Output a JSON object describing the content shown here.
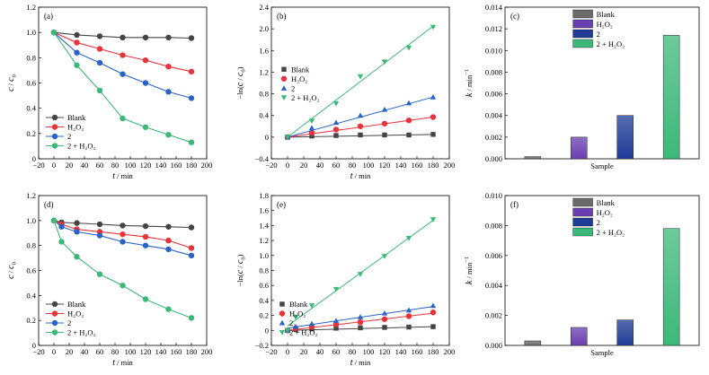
{
  "colors": {
    "Blank": "#444444",
    "H2O2": "#e8323c",
    "2": "#2a62c8",
    "2+H2O2": "#3cb878",
    "bar_Blank": "#6b6b6b",
    "bar_H2O2": "#6a3fb0",
    "bar_2": "#1f3c96",
    "bar_2+H2O2": "#3cb87a"
  },
  "chart_data": [
    {
      "id": "a",
      "type": "line",
      "label": "(a)",
      "xlabel_var": "t",
      "xlabel_unit": " / min",
      "ylabel_var": "c",
      "ylabel_sep": " / ",
      "ylabel_sub": "c",
      "xlim": [
        -20,
        200
      ],
      "ylim": [
        0,
        1.2
      ],
      "xticks": [
        "−20",
        "0",
        "20",
        "40",
        "60",
        "80",
        "100",
        "120",
        "140",
        "160",
        "180",
        "200"
      ],
      "yticks": [
        "0",
        "0.2",
        "0.4",
        "0.6",
        "0.8",
        "1.0",
        "1.2"
      ],
      "legend": "bottom-left",
      "x": [
        0,
        30,
        60,
        90,
        120,
        150,
        180
      ],
      "series": [
        {
          "name": "Blank",
          "key": "Blank",
          "marker": "circle",
          "values": [
            1.0,
            0.98,
            0.97,
            0.96,
            0.96,
            0.96,
            0.955
          ]
        },
        {
          "name": "H₂O₂",
          "key": "H2O2",
          "marker": "circle",
          "values": [
            1.0,
            0.92,
            0.87,
            0.82,
            0.78,
            0.73,
            0.69
          ]
        },
        {
          "name": "2",
          "key": "2",
          "marker": "circle",
          "values": [
            1.0,
            0.84,
            0.76,
            0.67,
            0.6,
            0.53,
            0.48
          ]
        },
        {
          "name": "2 + H₂O₂",
          "key": "2+H2O2",
          "marker": "circle",
          "values": [
            1.0,
            0.74,
            0.54,
            0.32,
            0.25,
            0.19,
            0.13
          ]
        }
      ]
    },
    {
      "id": "b",
      "type": "scatter",
      "label": "(b)",
      "xlabel_var": "t",
      "xlabel_unit": " / min",
      "ylabel_var": "c",
      "ylabel_sub": "c",
      "xlim": [
        -20,
        200
      ],
      "ylim": [
        -0.4,
        2.4
      ],
      "xticks": [
        "−20",
        "0",
        "20",
        "40",
        "60",
        "80",
        "100",
        "120",
        "140",
        "160",
        "180",
        "200"
      ],
      "yticks": [
        "−0.4",
        "0",
        "0.4",
        "0.8",
        "1.2",
        "1.6",
        "2.0",
        "2.4"
      ],
      "legend": "middle-left",
      "x": [
        0,
        30,
        60,
        90,
        120,
        150,
        180
      ],
      "series": [
        {
          "name": "Blank",
          "key": "Blank",
          "marker": "square",
          "values": [
            0,
            0.02,
            0.03,
            0.04,
            0.04,
            0.04,
            0.05
          ],
          "fit": [
            0,
            0.05
          ]
        },
        {
          "name": "H₂O₂",
          "key": "H2O2",
          "marker": "circle",
          "values": [
            0,
            0.08,
            0.14,
            0.2,
            0.25,
            0.31,
            0.37
          ],
          "fit": [
            0,
            0.37
          ]
        },
        {
          "name": "2",
          "key": "2",
          "marker": "triangle-up",
          "values": [
            0,
            0.17,
            0.27,
            0.4,
            0.51,
            0.63,
            0.74
          ],
          "fit": [
            0,
            0.74
          ]
        },
        {
          "name": "2 + H₂O₂",
          "key": "2+H2O2",
          "marker": "triangle-down",
          "values": [
            0,
            0.3,
            0.62,
            1.12,
            1.39,
            1.65,
            2.03
          ],
          "fit": [
            0,
            2.05
          ]
        }
      ]
    },
    {
      "id": "c",
      "type": "bar",
      "label": "(c)",
      "xlabel": "Sample",
      "ylabel_var": "k",
      "ylabel_unit": "min",
      "ylim": [
        0,
        0.014
      ],
      "yticks": [
        "0.000",
        "0.002",
        "0.004",
        "0.006",
        "0.008",
        "0.010",
        "0.012",
        "0.014"
      ],
      "legend": "top-center",
      "categories": [
        "Blank",
        "H₂O₂",
        "2",
        "2 + H₂O₂"
      ],
      "keys": [
        "bar_Blank",
        "bar_H2O2",
        "bar_2",
        "bar_2+H2O2"
      ],
      "values": [
        0.0002,
        0.002,
        0.004,
        0.0114
      ]
    },
    {
      "id": "d",
      "type": "line",
      "label": "(d)",
      "xlabel_var": "t",
      "xlabel_unit": " / min",
      "ylabel_var": "c",
      "ylabel_sep": " / ",
      "ylabel_sub": "c",
      "xlim": [
        -20,
        200
      ],
      "ylim": [
        0,
        1.2
      ],
      "xticks": [
        "−20",
        "0",
        "20",
        "40",
        "60",
        "80",
        "100",
        "120",
        "140",
        "160",
        "180",
        "200"
      ],
      "yticks": [
        "0",
        "0.2",
        "0.4",
        "0.6",
        "0.8",
        "1.0",
        "1.2"
      ],
      "legend": "bottom-left",
      "x": [
        0,
        10,
        30,
        60,
        90,
        120,
        150,
        180
      ],
      "series": [
        {
          "name": "Blank",
          "key": "Blank",
          "marker": "circle",
          "values": [
            1.0,
            0.985,
            0.98,
            0.97,
            0.96,
            0.955,
            0.95,
            0.945
          ]
        },
        {
          "name": "H₂O₂",
          "key": "H2O2",
          "marker": "circle",
          "values": [
            1.0,
            0.97,
            0.93,
            0.91,
            0.89,
            0.87,
            0.84,
            0.78
          ]
        },
        {
          "name": "2",
          "key": "2",
          "marker": "circle",
          "values": [
            1.0,
            0.95,
            0.91,
            0.88,
            0.83,
            0.8,
            0.77,
            0.72
          ]
        },
        {
          "name": "2 + H₂O₂",
          "key": "2+H2O2",
          "marker": "circle",
          "values": [
            1.0,
            0.83,
            0.71,
            0.57,
            0.48,
            0.37,
            0.29,
            0.22
          ]
        }
      ]
    },
    {
      "id": "e",
      "type": "scatter",
      "label": "(e)",
      "xlabel_var": "t",
      "xlabel_unit": " / min",
      "ylabel_var": "c",
      "ylabel_sub": "c",
      "xlim": [
        -20,
        200
      ],
      "ylim": [
        -0.2,
        1.8
      ],
      "xticks": [
        "−20",
        "0",
        "20",
        "40",
        "60",
        "80",
        "100",
        "120",
        "140",
        "160",
        "180",
        "200"
      ],
      "yticks": [
        "−0.2",
        "0",
        "0.2",
        "0.4",
        "0.6",
        "0.8",
        "1.0",
        "1.2",
        "1.4",
        "1.6",
        "1.8"
      ],
      "legend": "bottom-left",
      "x": [
        0,
        10,
        30,
        60,
        90,
        120,
        150,
        180
      ],
      "series": [
        {
          "name": "Blank",
          "key": "Blank",
          "marker": "square",
          "values": [
            0,
            0.01,
            0.02,
            0.03,
            0.035,
            0.04,
            0.045,
            0.05
          ],
          "fit": [
            0,
            0.05
          ]
        },
        {
          "name": "H₂O₂",
          "key": "H2O2",
          "marker": "circle",
          "values": [
            0,
            0.03,
            0.05,
            0.08,
            0.11,
            0.15,
            0.19,
            0.24
          ],
          "fit": [
            0,
            0.23
          ]
        },
        {
          "name": "2",
          "key": "2",
          "marker": "triangle-up",
          "values": [
            0,
            0.05,
            0.09,
            0.13,
            0.18,
            0.23,
            0.27,
            0.33
          ],
          "fit": [
            0.03,
            0.32
          ]
        },
        {
          "name": "2 + H₂O₂",
          "key": "2+H2O2",
          "marker": "triangle-down",
          "values": [
            0,
            0.18,
            0.33,
            0.55,
            0.75,
            0.99,
            1.23,
            1.48
          ],
          "fit": [
            0.06,
            1.47
          ]
        }
      ]
    },
    {
      "id": "f",
      "type": "bar",
      "label": "(f)",
      "xlabel": "Sample",
      "ylabel_var": "k",
      "ylabel_unit": "min",
      "ylim": [
        0,
        0.01
      ],
      "yticks": [
        "0.000",
        "0.002",
        "0.004",
        "0.006",
        "0.008",
        "0.010"
      ],
      "legend": "top-center",
      "categories": [
        "Blank",
        "H₂O₂",
        "2",
        "2 + H₂O₂"
      ],
      "keys": [
        "bar_Blank",
        "bar_H2O2",
        "bar_2",
        "bar_2+H2O2"
      ],
      "values": [
        0.0003,
        0.0012,
        0.0017,
        0.0078
      ]
    }
  ]
}
